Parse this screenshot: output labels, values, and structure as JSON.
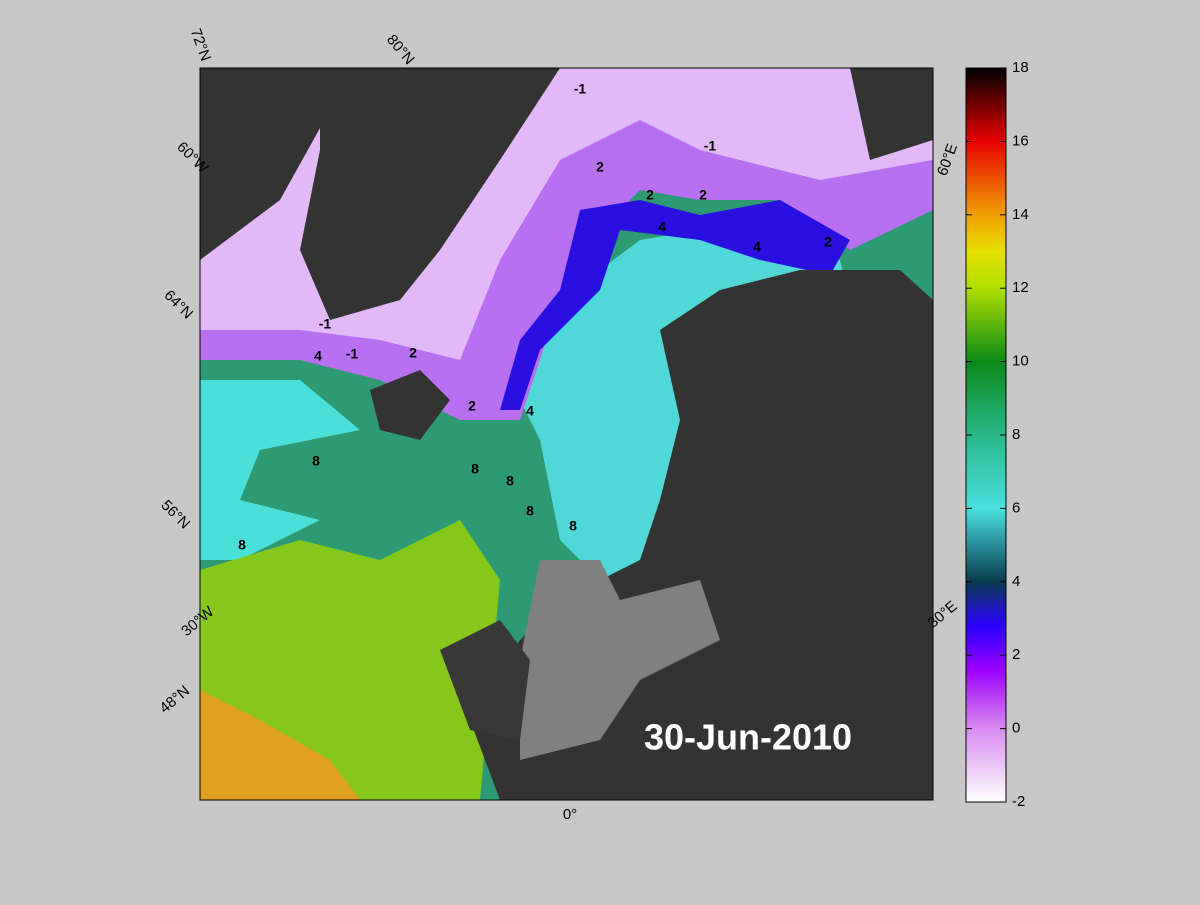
{
  "map": {
    "date": "30-Jun-2010",
    "colorbar": {
      "lim": [
        -2,
        18
      ],
      "ticks": [
        -2,
        0,
        2,
        4,
        6,
        8,
        10,
        12,
        14,
        16,
        18
      ]
    },
    "graticule_labels": [
      "72°N",
      "80°N",
      "60°W",
      "64°N",
      "56°N",
      "30°W",
      "48°N",
      "0°",
      "60°E",
      "30°E"
    ],
    "contour_labels": [
      "-1",
      "-1",
      "-1",
      "-1",
      "2",
      "2",
      "2",
      "2",
      "2",
      "2",
      "4",
      "4",
      "4",
      "4",
      "8",
      "8",
      "8",
      "8",
      "8",
      "8"
    ]
  }
}
